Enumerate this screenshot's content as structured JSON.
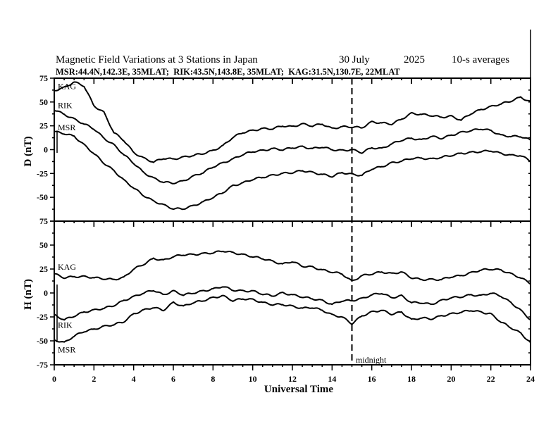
{
  "chart_data": [
    {
      "type": "line",
      "panel": "D",
      "title": "Magnetic Field Variations at 3 Stations in Japan",
      "date": "30 July",
      "year": "2025",
      "averaging": "10-s averages",
      "subtitle": "MSR:44.4N,142.3E, 35MLAT;  RIK:43.5N,143.8E, 35MLAT;  KAG:31.5N,130.7E, 22MLAT",
      "ylabel": "D (nT)",
      "ylim": [
        -75,
        75
      ],
      "yticks": [
        "75",
        "50",
        "25",
        "0",
        "-25",
        "-50",
        "-75"
      ],
      "x": [
        0,
        0.5,
        1,
        1.5,
        2,
        2.5,
        3,
        3.5,
        4,
        4.5,
        5,
        5.5,
        6,
        6.5,
        7,
        7.5,
        8,
        8.5,
        9,
        9.5,
        10,
        10.5,
        11,
        11.5,
        12,
        12.5,
        13,
        13.5,
        14,
        14.5,
        15,
        15.5,
        16,
        16.5,
        17,
        17.5,
        18,
        18.5,
        19,
        19.5,
        20,
        20.5,
        21,
        21.5,
        22,
        22.5,
        23,
        23.5,
        24
      ],
      "series": [
        {
          "name": "KAG",
          "values": [
            62,
            65,
            71,
            67,
            46,
            39,
            18,
            10,
            -3,
            -9,
            -13,
            -9,
            -10,
            -8,
            -6,
            -4,
            -1,
            4,
            13,
            18,
            20,
            22,
            22,
            25,
            24,
            27,
            25,
            27,
            22,
            24,
            24,
            23,
            29,
            28,
            27,
            32,
            38,
            37,
            36,
            34,
            35,
            31,
            38,
            42,
            45,
            48,
            51,
            55,
            50
          ]
        },
        {
          "name": "RIK",
          "values": [
            42,
            37,
            32,
            27,
            22,
            12,
            5,
            -5,
            -14,
            -24,
            -30,
            -34,
            -35,
            -33,
            -28,
            -24,
            -18,
            -14,
            -10,
            -5,
            -2,
            -1,
            1,
            0,
            2,
            3,
            1,
            3,
            0,
            -1,
            0,
            -3,
            2,
            1,
            6,
            10,
            12,
            10,
            14,
            12,
            15,
            18,
            20,
            22,
            20,
            15,
            14,
            14,
            10
          ]
        },
        {
          "name": "MSR",
          "values": [
            19,
            17,
            14,
            5,
            -4,
            -14,
            -22,
            -32,
            -40,
            -48,
            -54,
            -58,
            -62,
            -62,
            -59,
            -55,
            -50,
            -45,
            -38,
            -35,
            -31,
            -29,
            -27,
            -25,
            -24,
            -22,
            -24,
            -26,
            -28,
            -24,
            -26,
            -27,
            -20,
            -18,
            -14,
            -12,
            -9,
            -9,
            -10,
            -8,
            -6,
            -4,
            -3,
            -2,
            -1,
            -4,
            -6,
            -6,
            -12
          ]
        }
      ]
    },
    {
      "type": "line",
      "panel": "H",
      "ylabel": "H (nT)",
      "xlabel": "Universal Time",
      "ylim": [
        -75,
        75
      ],
      "xlim": [
        0,
        24
      ],
      "yticks": [
        "75",
        "50",
        "25",
        "0",
        "-25",
        "-50",
        "-75"
      ],
      "xticks": [
        "0",
        "2",
        "4",
        "6",
        "8",
        "10",
        "12",
        "14",
        "16",
        "18",
        "20",
        "22",
        "24"
      ],
      "annotation": "midnight",
      "midnight_ut": 15,
      "x": [
        0,
        0.5,
        1,
        1.5,
        2,
        2.5,
        3,
        3.5,
        4,
        4.5,
        5,
        5.5,
        6,
        6.5,
        7,
        7.5,
        8,
        8.5,
        9,
        9.5,
        10,
        10.5,
        11,
        11.5,
        12,
        12.5,
        13,
        13.5,
        14,
        14.5,
        15,
        15.5,
        16,
        16.5,
        17,
        17.5,
        18,
        18.5,
        19,
        19.5,
        20,
        20.5,
        21,
        21.5,
        22,
        22.5,
        23,
        23.5,
        24
      ],
      "series": [
        {
          "name": "KAG",
          "values": [
            20,
            16,
            17,
            17,
            16,
            15,
            14,
            16,
            25,
            30,
            36,
            34,
            38,
            40,
            40,
            41,
            42,
            44,
            42,
            40,
            38,
            36,
            33,
            30,
            33,
            28,
            27,
            24,
            22,
            20,
            12,
            18,
            20,
            22,
            20,
            22,
            16,
            14,
            14,
            14,
            17,
            18,
            21,
            24,
            25,
            24,
            20,
            16,
            10
          ]
        },
        {
          "name": "RIK",
          "values": [
            -23,
            -28,
            -24,
            -20,
            -18,
            -16,
            -13,
            -8,
            -4,
            0,
            3,
            -2,
            2,
            -2,
            0,
            2,
            4,
            7,
            3,
            2,
            2,
            -1,
            -3,
            0,
            -2,
            -4,
            -6,
            -8,
            -12,
            -8,
            -8,
            -6,
            -2,
            0,
            -5,
            -3,
            -10,
            -10,
            -12,
            -8,
            -5,
            -4,
            -2,
            -3,
            0,
            -3,
            -10,
            -18,
            -28
          ]
        },
        {
          "name": "MSR",
          "values": [
            -49,
            -52,
            -45,
            -40,
            -38,
            -35,
            -33,
            -30,
            -22,
            -18,
            -15,
            -18,
            -10,
            -14,
            -10,
            -8,
            -5,
            -3,
            -8,
            -6,
            -7,
            -10,
            -12,
            -12,
            -14,
            -16,
            -15,
            -18,
            -23,
            -25,
            -32,
            -24,
            -20,
            -18,
            -22,
            -20,
            -28,
            -26,
            -27,
            -24,
            -22,
            -20,
            -18,
            -20,
            -22,
            -30,
            -36,
            -42,
            -52
          ]
        }
      ]
    }
  ]
}
